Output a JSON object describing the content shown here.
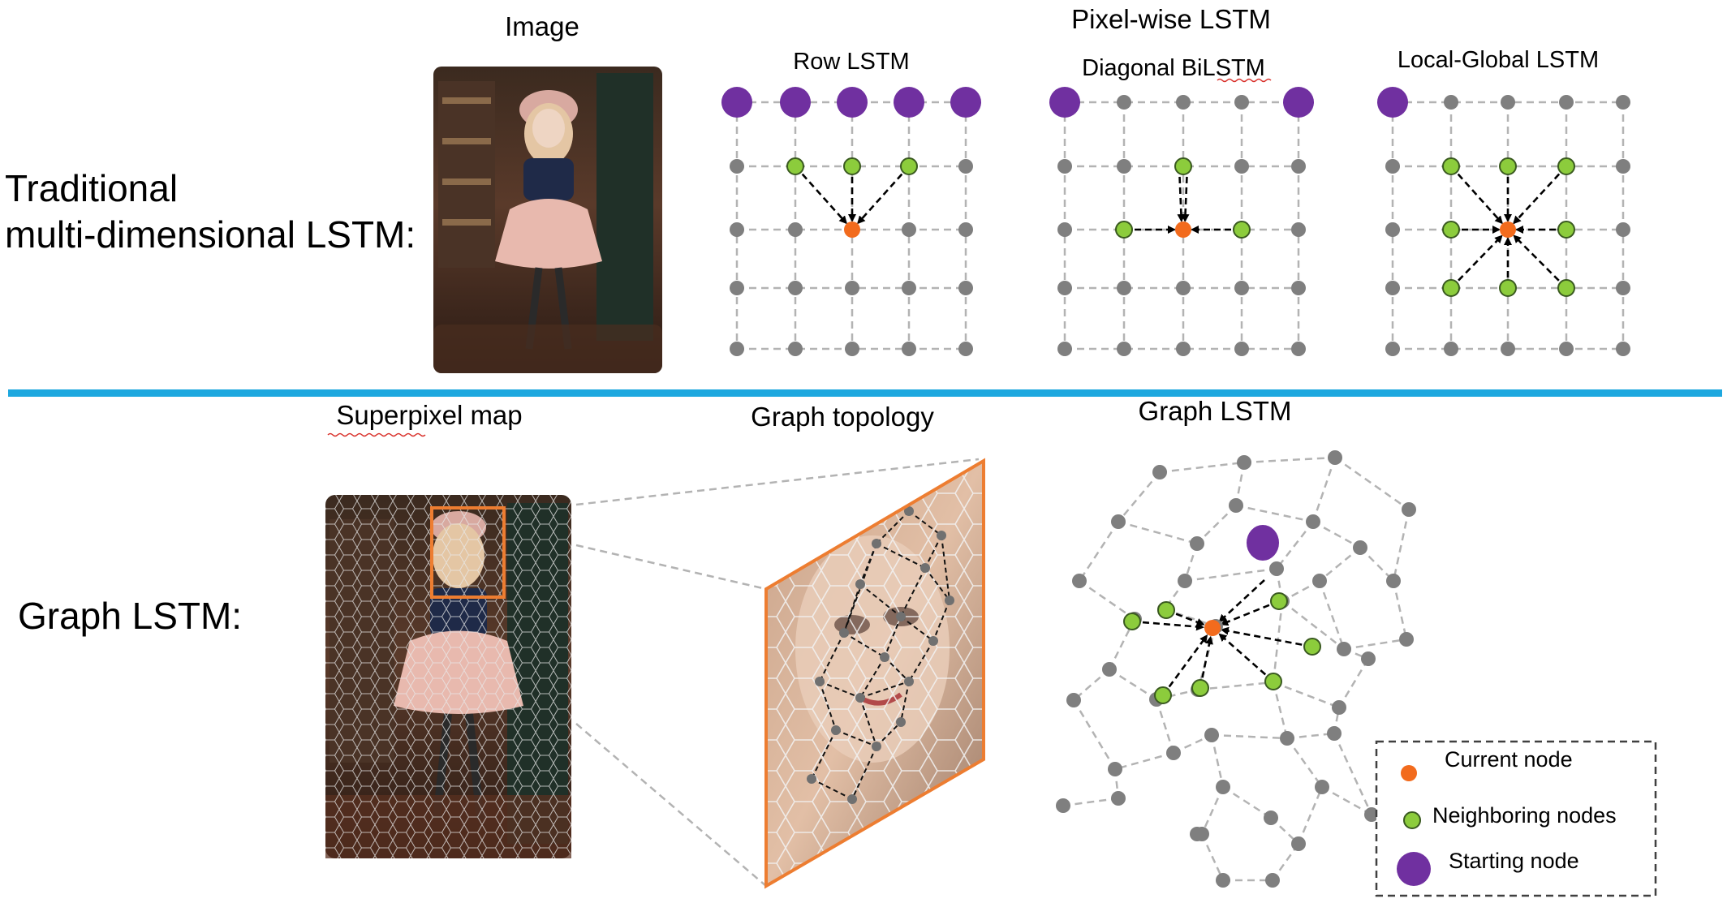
{
  "colors": {
    "divider": "#1ea8df",
    "node_gray": "#7f7f7f",
    "node_green": "#8ccc3c",
    "node_orange": "#f26b1d",
    "node_purple": "#7030a0",
    "frame_orange": "#ed7d31"
  },
  "top": {
    "row_label_line1": "Traditional",
    "row_label_line2": "multi-dimensional LSTM:",
    "image_title": "Image",
    "pixelwise_title": "Pixel-wise LSTM",
    "panels": [
      {
        "title": "Row LSTM"
      },
      {
        "title": "Diagonal BiLSTM"
      },
      {
        "title": "Local-Global LSTM"
      }
    ]
  },
  "bottom": {
    "row_label": "Graph LSTM:",
    "superpixel_title": "Superpixel map",
    "topology_title": "Graph topology",
    "graph_lstm_title": "Graph LSTM"
  },
  "legend": {
    "items": [
      {
        "label": "Current node",
        "icon": "orange-dot"
      },
      {
        "label": "Neighboring nodes",
        "icon": "green-dot"
      },
      {
        "label": "Starting node",
        "icon": "purple-dot"
      }
    ]
  }
}
